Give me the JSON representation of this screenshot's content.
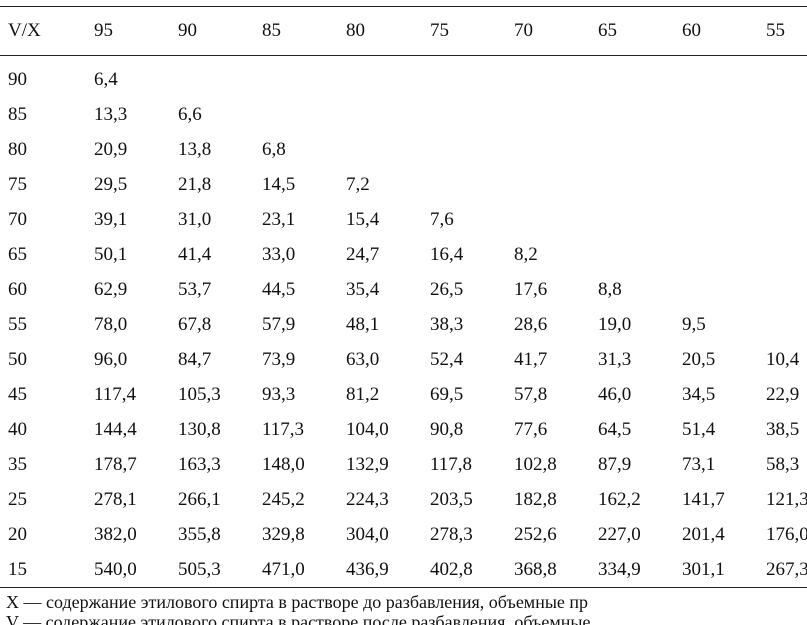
{
  "table": {
    "header": [
      "V/X",
      "95",
      "90",
      "85",
      "80",
      "75",
      "70",
      "65",
      "60",
      "55"
    ],
    "rows": [
      [
        "90",
        "6,4",
        "",
        "",
        "",
        "",
        "",
        "",
        "",
        ""
      ],
      [
        "85",
        "13,3",
        "6,6",
        "",
        "",
        "",
        "",
        "",
        "",
        ""
      ],
      [
        "80",
        "20,9",
        "13,8",
        "6,8",
        "",
        "",
        "",
        "",
        "",
        ""
      ],
      [
        "75",
        "29,5",
        "21,8",
        "14,5",
        "7,2",
        "",
        "",
        "",
        "",
        ""
      ],
      [
        "70",
        "39,1",
        "31,0",
        "23,1",
        "15,4",
        "7,6",
        "",
        "",
        "",
        ""
      ],
      [
        "65",
        "50,1",
        "41,4",
        "33,0",
        "24,7",
        "16,4",
        "8,2",
        "",
        "",
        ""
      ],
      [
        "60",
        "62,9",
        "53,7",
        "44,5",
        "35,4",
        "26,5",
        "17,6",
        "8,8",
        "",
        ""
      ],
      [
        "55",
        "78,0",
        "67,8",
        "57,9",
        "48,1",
        "38,3",
        "28,6",
        "19,0",
        "9,5",
        ""
      ],
      [
        "50",
        "96,0",
        "84,7",
        "73,9",
        "63,0",
        "52,4",
        "41,7",
        "31,3",
        "20,5",
        "10,4"
      ],
      [
        "45",
        "117,4",
        "105,3",
        "93,3",
        "81,2",
        "69,5",
        "57,8",
        "46,0",
        "34,5",
        "22,9"
      ],
      [
        "40",
        "144,4",
        "130,8",
        "117,3",
        "104,0",
        "90,8",
        "77,6",
        "64,5",
        "51,4",
        "38,5"
      ],
      [
        "35",
        "178,7",
        "163,3",
        "148,0",
        "132,9",
        "117,8",
        "102,8",
        "87,9",
        "73,1",
        "58,3"
      ],
      [
        "25",
        "278,1",
        "266,1",
        "245,2",
        "224,3",
        "203,5",
        "182,8",
        "162,2",
        "141,7",
        "121,3"
      ],
      [
        "20",
        "382,0",
        "355,8",
        "329,8",
        "304,0",
        "278,3",
        "252,6",
        "227,0",
        "201,4",
        "176,0"
      ],
      [
        "15",
        "540,0",
        "505,3",
        "471,0",
        "436,9",
        "402,8",
        "368,8",
        "334,9",
        "301,1",
        "267,3"
      ]
    ]
  },
  "notes": {
    "x": "X — содержание этилового спирта в растворе до разбавления, объемные пр",
    "v": "V — содержание этилового спирта в растворе после разбавления, объемные"
  }
}
